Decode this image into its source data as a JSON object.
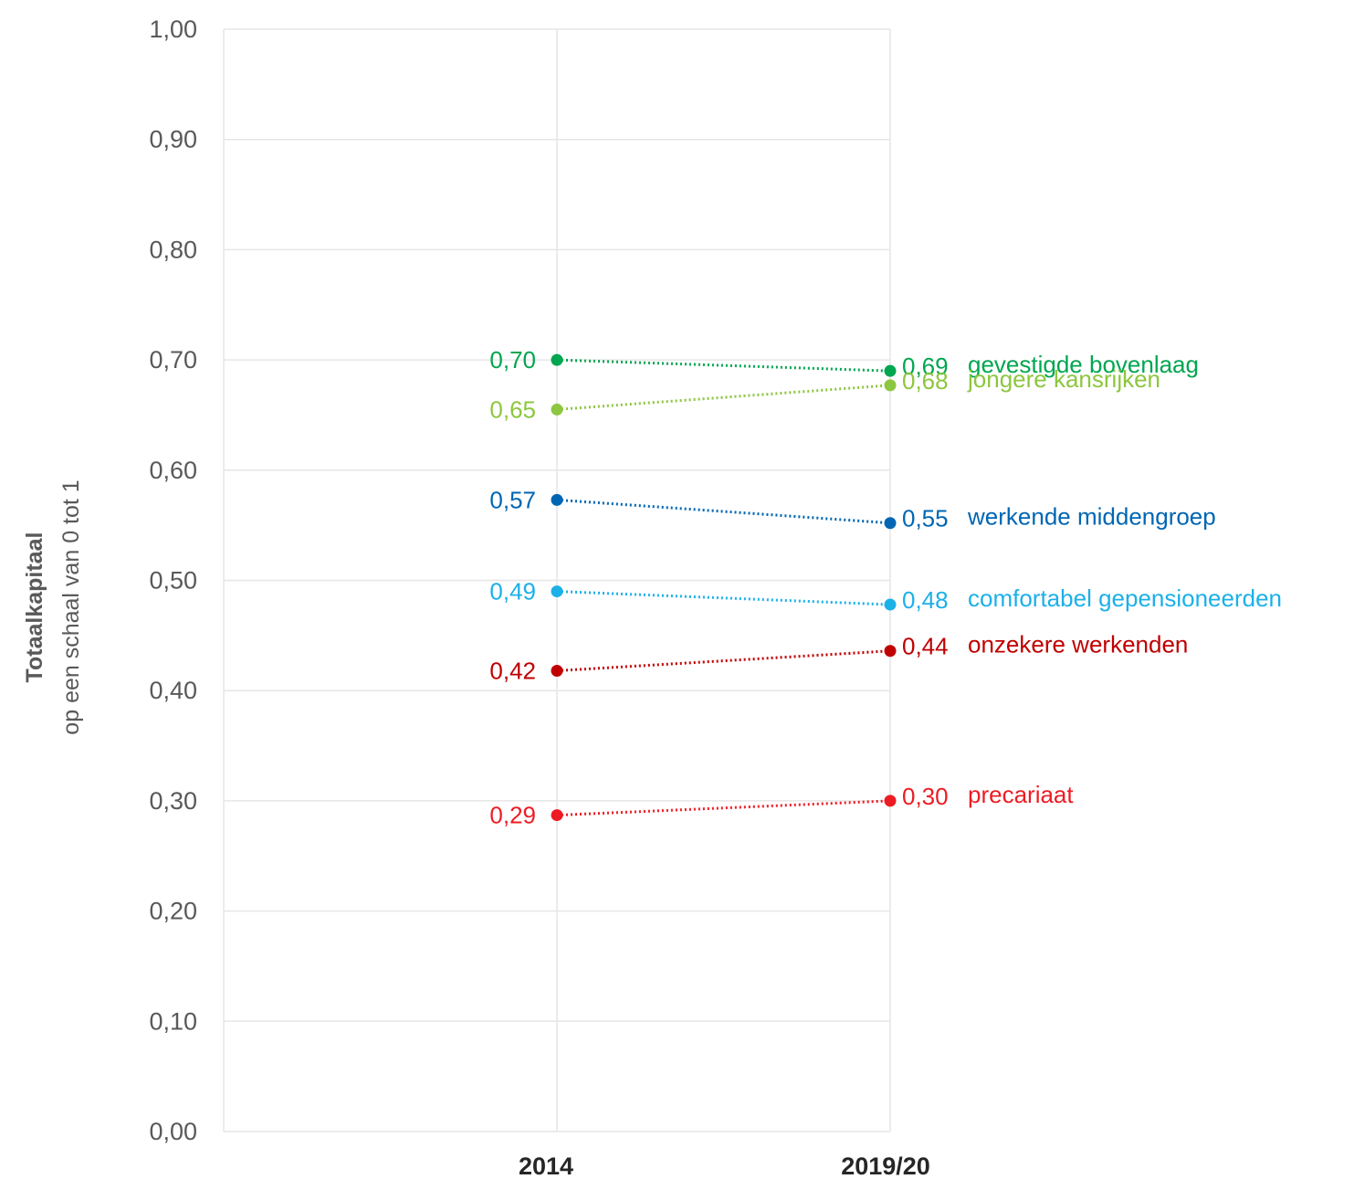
{
  "chart_data": {
    "type": "line",
    "categories": [
      "2014",
      "2019/20"
    ],
    "ylabel": "Totaalkapitaal",
    "ylabel_sub": "op een schaal van 0 tot 1",
    "ylim": [
      0,
      1
    ],
    "y_ticks": [
      "0,00",
      "0,10",
      "0,20",
      "0,30",
      "0,40",
      "0,50",
      "0,60",
      "0,70",
      "0,80",
      "0,90",
      "1,00"
    ],
    "grid": true,
    "line_style": "dotted",
    "series": [
      {
        "name": "gevestigde bovenlaag",
        "values": [
          0.7,
          0.69
        ],
        "labels": [
          "0,70",
          "0,69"
        ],
        "color": "#00a650"
      },
      {
        "name": "jongere kansrijken",
        "values": [
          0.655,
          0.677
        ],
        "labels": [
          "0,65",
          "0,68"
        ],
        "color": "#8dc63f"
      },
      {
        "name": "werkende middengroep",
        "values": [
          0.573,
          0.552
        ],
        "labels": [
          "0,57",
          "0,55"
        ],
        "color": "#0066b3"
      },
      {
        "name": "comfortabel gepensioneerden",
        "values": [
          0.49,
          0.478
        ],
        "labels": [
          "0,49",
          "0,48"
        ],
        "color": "#1cb0e8"
      },
      {
        "name": "onzekere werkenden",
        "values": [
          0.418,
          0.436
        ],
        "labels": [
          "0,42",
          "0,44"
        ],
        "color": "#c00000"
      },
      {
        "name": "precariaat",
        "values": [
          0.287,
          0.3
        ],
        "labels": [
          "0,29",
          "0,30"
        ],
        "color": "#ed1c24"
      }
    ]
  }
}
